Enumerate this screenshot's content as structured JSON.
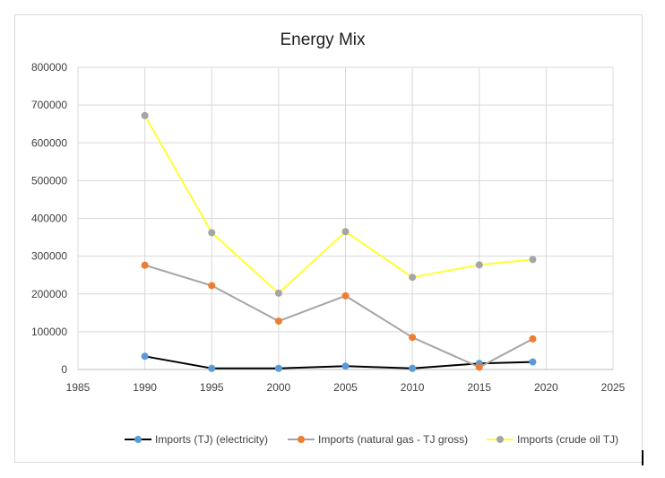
{
  "chart_data": {
    "type": "line",
    "title": "Energy Mix",
    "xlabel": "",
    "ylabel": "",
    "xlim": [
      1985,
      2025
    ],
    "ylim": [
      0,
      800000
    ],
    "x_ticks": [
      1985,
      1990,
      1995,
      2000,
      2005,
      2010,
      2015,
      2020,
      2025
    ],
    "y_ticks": [
      0,
      100000,
      200000,
      300000,
      400000,
      500000,
      600000,
      700000,
      800000
    ],
    "grid": true,
    "legend_position": "bottom",
    "x": [
      1990,
      1995,
      2000,
      2005,
      2010,
      2015,
      2019
    ],
    "series": [
      {
        "name": "Imports (TJ) (electricity)",
        "values": [
          35000,
          3000,
          3000,
          9000,
          3000,
          16000,
          20000
        ],
        "line_color": "#000000",
        "marker_color": "#5b9bd5"
      },
      {
        "name": "Imports (natural gas - TJ gross)",
        "values": [
          276000,
          222000,
          128000,
          195000,
          85000,
          6000,
          81000
        ],
        "line_color": "#a5a5a5",
        "marker_color": "#ed7d31"
      },
      {
        "name": "Imports (crude oil TJ)",
        "values": [
          672000,
          362000,
          202000,
          365000,
          244000,
          277000,
          291000
        ],
        "line_color": "#ffff33",
        "marker_color": "#a5a5a5"
      }
    ]
  }
}
